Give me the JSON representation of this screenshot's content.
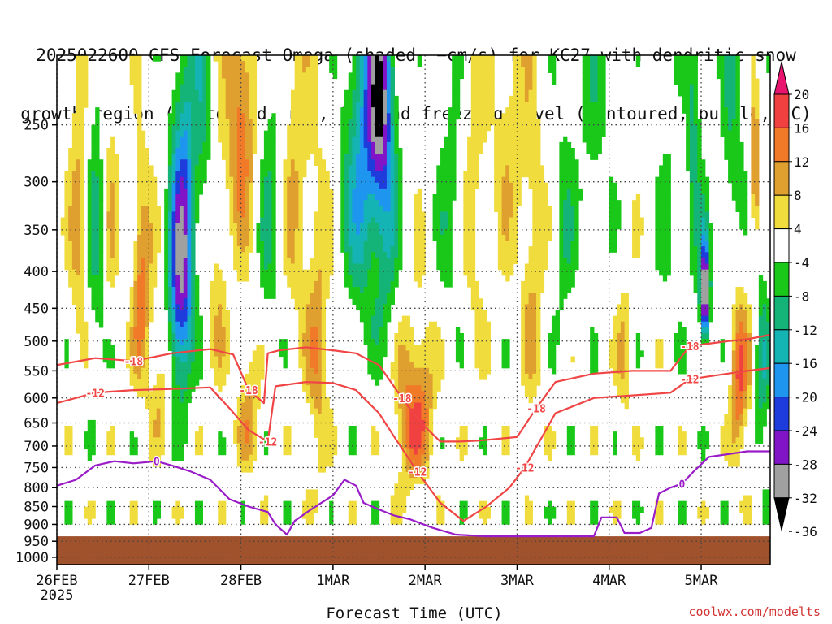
{
  "title": {
    "line1": "2025022600 GFS Forecast Omega (shaded, −cm/s) for KC27 with dendritic snow",
    "line2": "growth region (contoured, red, ºC) and freezing level (contoured, purple, ºC)"
  },
  "credit": "coolwx.com/modelts",
  "chart_data": {
    "type": "heatmap",
    "title": "2025022600 GFS Forecast Omega (shaded, −cm/s) for KC27 with dendritic snow growth region (contoured, red, ºC) and freezing level (contoured, purple, ºC)",
    "xlabel": "Forecast Time (UTC)",
    "ylabel": "",
    "x_ticks": [
      {
        "label": "26FEB",
        "sublabel": "2025",
        "hours": 0
      },
      {
        "label": "27FEB",
        "hours": 24
      },
      {
        "label": "28FEB",
        "hours": 48
      },
      {
        "label": "1MAR",
        "hours": 72
      },
      {
        "label": "2MAR",
        "hours": 96
      },
      {
        "label": "3MAR",
        "hours": 120
      },
      {
        "label": "4MAR",
        "hours": 144
      },
      {
        "label": "5MAR",
        "hours": 168
      }
    ],
    "xlim_hours": [
      0,
      186
    ],
    "y_ticks": [
      250,
      300,
      350,
      400,
      450,
      500,
      550,
      600,
      650,
      700,
      750,
      800,
      850,
      900,
      950,
      1000
    ],
    "ylim_hPa": [
      200,
      1024
    ],
    "y_scale": "log-pressure",
    "grid": true,
    "ground_level_hPa": 935,
    "colorbar": {
      "labels": [
        20,
        16,
        12,
        8,
        4,
        -4,
        -8,
        -12,
        -16,
        -20,
        -24,
        -28,
        -32,
        -36
      ],
      "colors": [
        "#e8146e",
        "#f04040",
        "#f07a28",
        "#e0a030",
        "#f0dc3c",
        "#ffffff",
        "#19c819",
        "#14b478",
        "#14b4b4",
        "#1e96f0",
        "#1e3cdc",
        "#8214c8",
        "#a0a0a0",
        "#000000"
      ]
    },
    "dendritic_contours": [
      {
        "label": "-18",
        "color": "#f04545",
        "points": [
          [
            0,
            540
          ],
          [
            10,
            528
          ],
          [
            20,
            533
          ],
          [
            30,
            520
          ],
          [
            40,
            513
          ],
          [
            46,
            522
          ],
          [
            50,
            585
          ],
          [
            54,
            610
          ],
          [
            55,
            520
          ],
          [
            58,
            515
          ],
          [
            65,
            510
          ],
          [
            72,
            515
          ],
          [
            78,
            520
          ],
          [
            84,
            540
          ],
          [
            90,
            600
          ],
          [
            95,
            650
          ],
          [
            100,
            690
          ],
          [
            105,
            690
          ],
          [
            110,
            688
          ],
          [
            120,
            680
          ],
          [
            125,
            620
          ],
          [
            130,
            570
          ],
          [
            140,
            555
          ],
          [
            150,
            550
          ],
          [
            160,
            550
          ],
          [
            165,
            508
          ],
          [
            175,
            500
          ],
          [
            180,
            497
          ],
          [
            186,
            490
          ]
        ]
      },
      {
        "label": "-12",
        "color": "#f04545",
        "points": [
          [
            0,
            610
          ],
          [
            10,
            590
          ],
          [
            20,
            585
          ],
          [
            30,
            583
          ],
          [
            40,
            580
          ],
          [
            45,
            620
          ],
          [
            50,
            665
          ],
          [
            55,
            690
          ],
          [
            57,
            578
          ],
          [
            65,
            570
          ],
          [
            72,
            572
          ],
          [
            78,
            585
          ],
          [
            84,
            630
          ],
          [
            88,
            680
          ],
          [
            94,
            760
          ],
          [
            100,
            840
          ],
          [
            106,
            890
          ],
          [
            112,
            850
          ],
          [
            118,
            800
          ],
          [
            122,
            750
          ],
          [
            130,
            630
          ],
          [
            140,
            600
          ],
          [
            150,
            595
          ],
          [
            160,
            590
          ],
          [
            165,
            565
          ],
          [
            175,
            555
          ],
          [
            180,
            550
          ],
          [
            186,
            545
          ]
        ]
      }
    ],
    "freezing_contour": {
      "label": "0",
      "color": "#9a1cc8",
      "points": [
        [
          0,
          795
        ],
        [
          5,
          780
        ],
        [
          10,
          745
        ],
        [
          15,
          735
        ],
        [
          20,
          740
        ],
        [
          26,
          735
        ],
        [
          30,
          745
        ],
        [
          35,
          760
        ],
        [
          40,
          780
        ],
        [
          45,
          830
        ],
        [
          50,
          850
        ],
        [
          55,
          865
        ],
        [
          57,
          900
        ],
        [
          60,
          930
        ],
        [
          62,
          890
        ],
        [
          66,
          860
        ],
        [
          72,
          820
        ],
        [
          75,
          780
        ],
        [
          78,
          795
        ],
        [
          80,
          840
        ],
        [
          84,
          858
        ],
        [
          88,
          875
        ],
        [
          92,
          885
        ],
        [
          98,
          910
        ],
        [
          104,
          930
        ],
        [
          112,
          935
        ],
        [
          120,
          935
        ],
        [
          140,
          935
        ],
        [
          142,
          880
        ],
        [
          146,
          880
        ],
        [
          148,
          925
        ],
        [
          152,
          925
        ],
        [
          155,
          910
        ],
        [
          157,
          815
        ],
        [
          160,
          800
        ],
        [
          163,
          790
        ],
        [
          166,
          760
        ],
        [
          170,
          725
        ],
        [
          180,
          712
        ],
        [
          186,
          712
        ]
      ]
    }
  }
}
